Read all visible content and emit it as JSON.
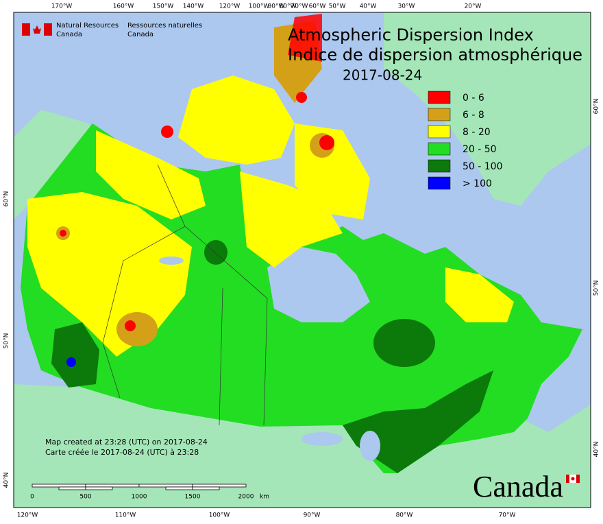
{
  "header": {
    "agency_en": [
      "Natural Resources",
      "Canada"
    ],
    "agency_fr": [
      "Ressources naturelles",
      "Canada"
    ]
  },
  "title": {
    "line1": "Atmospheric Dispersion Index",
    "line2": "Indice de dispersion atmosphérique",
    "date": "2017-08-24"
  },
  "legend": [
    {
      "label": "0 - 6",
      "color": "#ff0000"
    },
    {
      "label": "6 - 8",
      "color": "#d4a017"
    },
    {
      "label": "8 - 20",
      "color": "#ffff00"
    },
    {
      "label": "20 - 50",
      "color": "#22dd22"
    },
    {
      "label": "50 - 100",
      "color": "#0b7a0b"
    },
    {
      "label": "> 100",
      "color": "#0000ff"
    }
  ],
  "top_labels": [
    "170°W",
    "160°W",
    "150°W",
    "140°W",
    "120°W",
    "100°W",
    "90°W",
    "80°W",
    "70°W",
    "60°W",
    "50°W",
    "40°W",
    "30°W",
    "20°W"
  ],
  "bottom_labels": [
    "120°W",
    "110°W",
    "100°W",
    "90°W",
    "80°W",
    "70°W"
  ],
  "left_labels": [
    "60°N",
    "50°N",
    "40°N"
  ],
  "right_labels": [
    "60°N",
    "50°N",
    "40°N"
  ],
  "footer": {
    "created_en": "Map created at 23:28 (UTC) on 2017-08-24",
    "created_fr": "Carte créée le 2017-08-24 (UTC) à 23:28"
  },
  "scale_bar": {
    "ticks": [
      "0",
      "500",
      "1000",
      "1500",
      "2000"
    ],
    "unit": "km"
  },
  "wordmark": "Canada"
}
